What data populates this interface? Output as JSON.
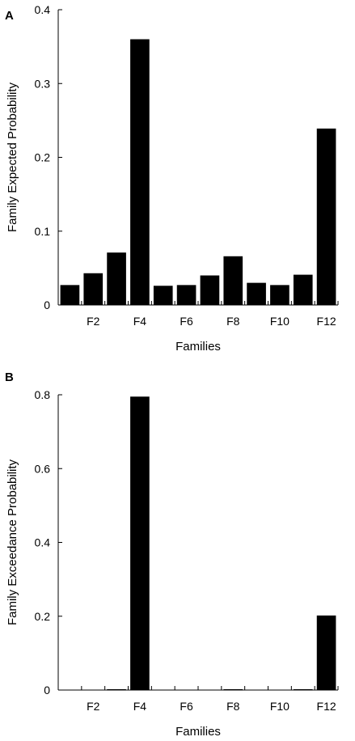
{
  "chart_data": [
    {
      "panel": "A",
      "type": "bar",
      "xlabel": "Families",
      "ylabel": "Family Expected Probability",
      "categories": [
        "F1",
        "F2",
        "F3",
        "F4",
        "F5",
        "F6",
        "F7",
        "F8",
        "F9",
        "F10",
        "F11",
        "F12"
      ],
      "x_tick_labels": [
        "F2",
        "F4",
        "F6",
        "F8",
        "F10",
        "F12"
      ],
      "values": [
        0.027,
        0.043,
        0.071,
        0.36,
        0.026,
        0.027,
        0.04,
        0.066,
        0.03,
        0.027,
        0.041,
        0.239
      ],
      "ylim": [
        0,
        0.4
      ],
      "y_ticks": [
        "0",
        "0.1",
        "0.2",
        "0.3",
        "0.4"
      ],
      "bar_color": "#000000",
      "grid": false
    },
    {
      "panel": "B",
      "type": "bar",
      "xlabel": "Families",
      "ylabel": "Family Exceedance Probability",
      "categories": [
        "F1",
        "F2",
        "F3",
        "F4",
        "F5",
        "F6",
        "F7",
        "F8",
        "F9",
        "F10",
        "F11",
        "F12"
      ],
      "x_tick_labels": [
        "F2",
        "F4",
        "F6",
        "F8",
        "F10",
        "F12"
      ],
      "values": [
        0,
        0,
        0.002,
        0.795,
        0,
        0,
        0,
        0.002,
        0,
        0,
        0.001,
        0.202
      ],
      "ylim": [
        0,
        0.8
      ],
      "y_ticks": [
        "0",
        "0.2",
        "0.4",
        "0.6",
        "0.8"
      ],
      "bar_color": "#000000",
      "grid": false
    }
  ]
}
